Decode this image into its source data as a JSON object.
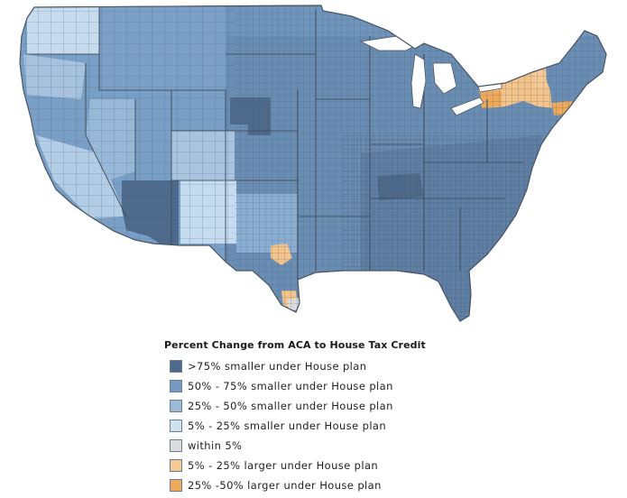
{
  "legend": {
    "title": "Percent Change from ACA to House Tax Credit",
    "items": [
      {
        "label": ">75% smaller under House plan",
        "color": "#4d6a8c"
      },
      {
        "label": "50% - 75% smaller under House plan",
        "color": "#7599c0"
      },
      {
        "label": "25% - 50% smaller under House plan",
        "color": "#9cbad8"
      },
      {
        "label": "5% - 25% smaller under House plan",
        "color": "#cfe2f2"
      },
      {
        "label": "within 5%",
        "color": "#dcdcdc"
      },
      {
        "label": "5% - 25% larger under House plan",
        "color": "#f6ca95"
      },
      {
        "label": "25% -50% larger under House plan",
        "color": "#eea95a"
      }
    ]
  },
  "map_colors": {
    "ocean": "#ffffff",
    "base": "#6b8db5",
    "county_border": "#4a5866"
  }
}
